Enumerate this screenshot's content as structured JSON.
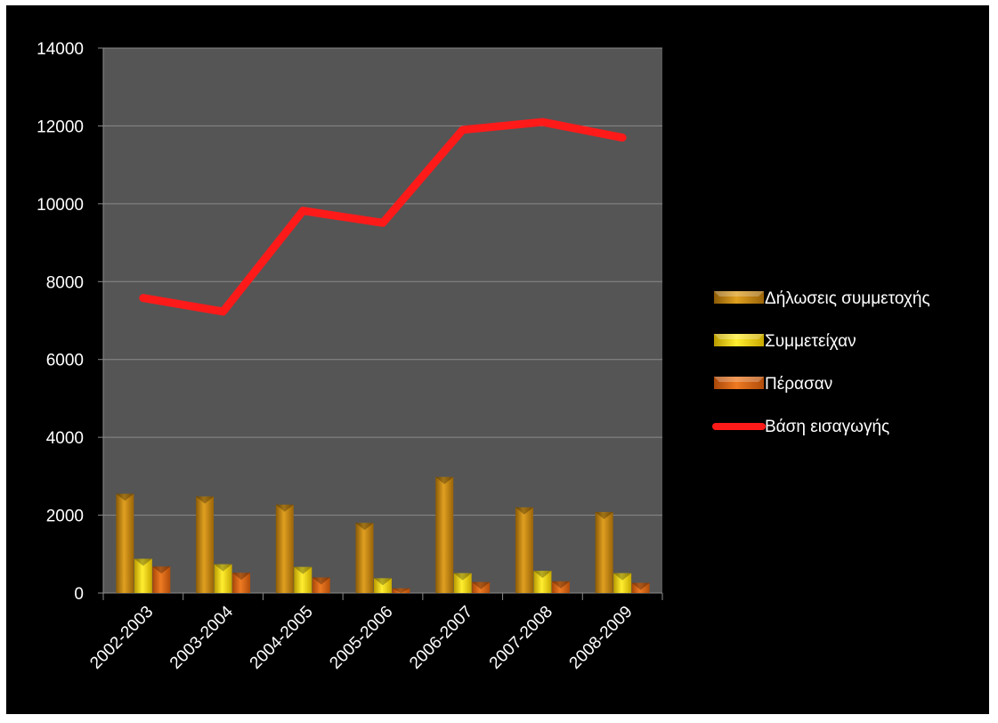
{
  "chart_data": {
    "type": "bar",
    "categories": [
      "2002-2003",
      "2003-2004",
      "2004-2005",
      "2005-2006",
      "2006-2007",
      "2007-2008",
      "2008-2009"
    ],
    "ylim": [
      0,
      14000
    ],
    "yticks": [
      "0",
      "2000",
      "4000",
      "6000",
      "8000",
      "10000",
      "12000",
      "14000"
    ],
    "grid": true,
    "legend_position": "right",
    "series": [
      {
        "name": "Δήλωσεις συμμετοχής",
        "type": "bar",
        "color": "#C8860A",
        "values": [
          2550,
          2480,
          2270,
          1800,
          2980,
          2200,
          2080
        ]
      },
      {
        "name": "Συμμετείχαν",
        "type": "bar",
        "color": "#F2D200",
        "values": [
          880,
          740,
          670,
          380,
          510,
          570,
          510
        ]
      },
      {
        "name": "Πέρασαν",
        "type": "bar",
        "color": "#D4600E",
        "values": [
          680,
          520,
          400,
          120,
          280,
          300,
          260
        ]
      },
      {
        "name": "Βάση εισαγωγής",
        "type": "line",
        "color": "#FF1A1A",
        "values": [
          7580,
          7230,
          9820,
          9510,
          11900,
          12100,
          11700
        ]
      }
    ]
  }
}
